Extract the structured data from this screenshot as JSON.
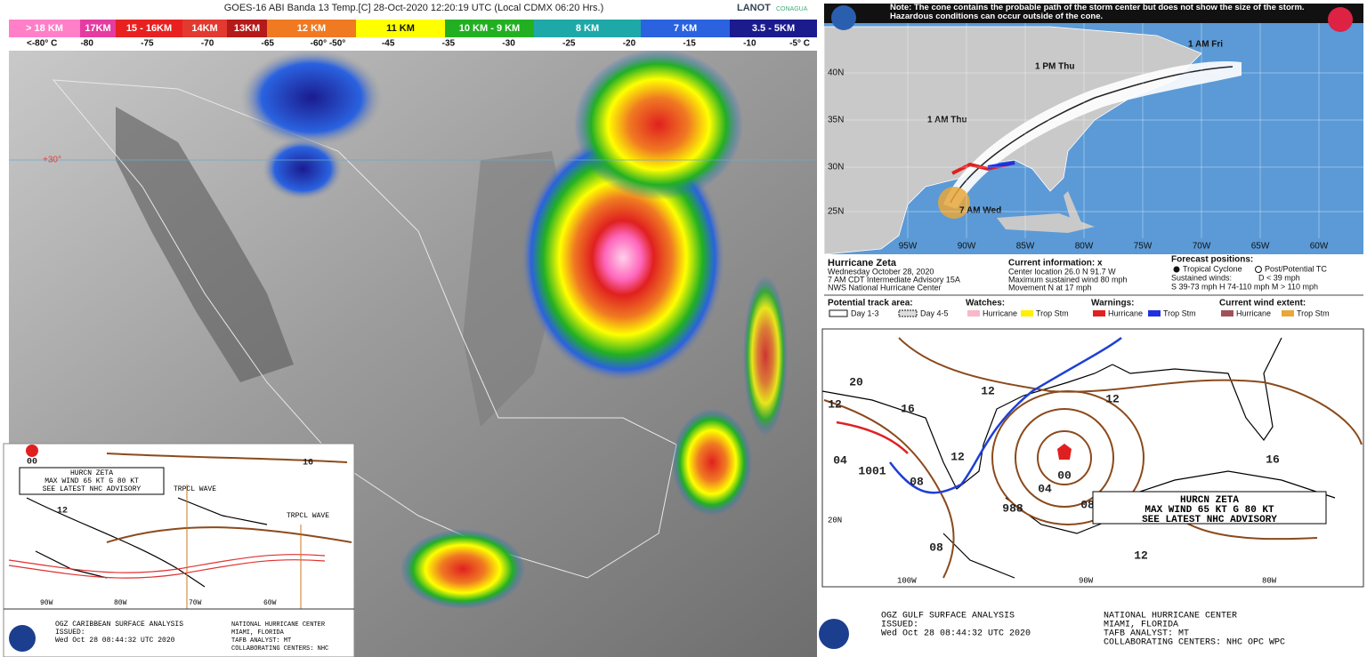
{
  "satellite": {
    "title": "GOES-16 ABI Banda 13 Temp.[C] 28-Oct-2020 12:20:19 UTC (Local CDMX  06:20 Hrs.)",
    "logos": [
      "LANOT",
      "CONAGUA"
    ],
    "legend": [
      {
        "label": "> 18 KM",
        "color": "#ff7fc8"
      },
      {
        "label": "17KM",
        "color": "#e43ca0"
      },
      {
        "label": "15 - 16KM",
        "color": "#e82020"
      },
      {
        "label": "14KM",
        "color": "#e23a30"
      },
      {
        "label": "13KM",
        "color": "#b41a1a"
      },
      {
        "label": "12 KM",
        "color": "#f07a22"
      },
      {
        "label": "11 KM",
        "color": "#ffff00"
      },
      {
        "label": "10 KM - 9 KM",
        "color": "#22b022"
      },
      {
        "label": "8 KM",
        "color": "#1fa8a8"
      },
      {
        "label": "7 KM",
        "color": "#2a62e0"
      },
      {
        "label": "3.5 - 5KM",
        "color": "#1b1b8e"
      }
    ],
    "temperatures": [
      "<-80° C",
      "-80",
      "-75",
      "-70",
      "-65",
      "-60° -50°",
      "-45",
      "-35",
      "-30",
      "-25",
      "-20",
      "-15",
      "-10",
      "-5° C"
    ],
    "lat_label": "+30°"
  },
  "caribbean_inset": {
    "pressure_labels": [
      "00",
      "16",
      "12"
    ],
    "advisory": [
      "HURCN ZETA",
      "MAX WIND 65 KT G 80 KT",
      "SEE LATEST NHC ADVISORY"
    ],
    "waves": [
      "TRPCL WAVE",
      "TRPCL WAVE"
    ],
    "lon_labels": [
      "90W",
      "80W",
      "70W",
      "60W"
    ],
    "footer": [
      "OGZ CARIBBEAN SURFACE ANALYSIS",
      "ISSUED:",
      "Wed Oct 28 08:44:32 UTC 2020"
    ],
    "center": [
      "NATIONAL HURRICANE CENTER",
      "MIAMI, FLORIDA",
      "TAFB ANALYST: MT",
      "COLLABORATING CENTERS: NHC"
    ]
  },
  "cone_map": {
    "note": "Note: The cone contains the probable path of the storm center but does not show the size of the storm. Hazardous conditions can occur outside of the cone.",
    "points": [
      "1 AM Fri",
      "1 PM Thu",
      "1 AM Thu",
      "7 AM Wed"
    ],
    "lat_labels": [
      "40N",
      "35N",
      "30N",
      "25N"
    ],
    "lon_labels": [
      "95W",
      "90W",
      "85W",
      "80W",
      "75W",
      "70W",
      "65W",
      "60W"
    ],
    "info": [
      "Hurricane Zeta",
      "Wednesday October 28, 2020",
      "7 AM CDT Intermediate Advisory 15A",
      "NWS National Hurricane Center"
    ],
    "current_title": "Current information: x",
    "current": [
      "Center location 26.0 N 91.7 W",
      "Maximum sustained wind 80 mph",
      "Movement N at 17 mph"
    ],
    "forecast_title": "Forecast positions:",
    "forecast": [
      "Tropical Cyclone",
      "Post/Potential TC",
      "Sustained winds:",
      "D < 39 mph",
      "S 39-73 mph  H 74-110 mph  M > 110 mph"
    ],
    "legend": {
      "track_title": "Potential track area:",
      "track": [
        "Day 1-3",
        "Day 4-5"
      ],
      "watches_title": "Watches:",
      "watches": [
        "Hurricane",
        "Trop Stm"
      ],
      "warnings_title": "Warnings:",
      "warnings": [
        "Hurricane",
        "Trop Stm"
      ],
      "wind_title": "Current wind extent:",
      "wind": [
        "Hurricane",
        "Trop Stm"
      ]
    }
  },
  "gulf_analysis": {
    "pressure_labels": [
      "20",
      "12",
      "16",
      "12",
      "04",
      "1001",
      "08",
      "12",
      "988",
      "00",
      "04",
      "08",
      "08",
      "12",
      "16",
      "12"
    ],
    "advisory": [
      "HURCN ZETA",
      "MAX WIND 65 KT G 80 KT",
      "SEE LATEST NHC ADVISORY"
    ],
    "lat_label": "20N",
    "lon_labels": [
      "100W",
      "90W",
      "80W"
    ],
    "footer": [
      "OGZ GULF SURFACE ANALYSIS",
      "ISSUED:",
      "Wed Oct 28 08:44:32 UTC 2020"
    ],
    "center": [
      "NATIONAL HURRICANE CENTER",
      "MIAMI, FLORIDA",
      "TAFB ANALYST: MT",
      "COLLABORATING CENTERS: NHC OPC WPC"
    ]
  }
}
